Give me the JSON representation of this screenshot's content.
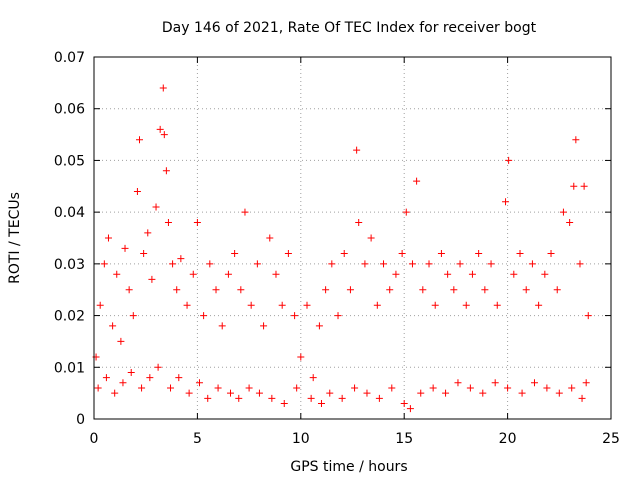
{
  "chart_data": {
    "type": "scatter",
    "title": "Day 146 of 2021, Rate Of TEC Index for receiver bogt",
    "xlabel": "GPS time / hours",
    "ylabel": "ROTI / TECUs",
    "xlim": [
      0,
      25
    ],
    "ylim": [
      0,
      0.07
    ],
    "x_ticks": [
      0,
      5,
      10,
      15,
      20,
      25
    ],
    "x_tick_labels": [
      "0",
      "5",
      "10",
      "15",
      "20",
      "25"
    ],
    "y_ticks": [
      0,
      0.01,
      0.02,
      0.03,
      0.04,
      0.05,
      0.06,
      0.07
    ],
    "y_tick_labels": [
      "0",
      "0.01",
      "0.02",
      "0.03",
      "0.04",
      "0.05",
      "0.06",
      "0.07"
    ],
    "grid": true,
    "marker": "plus",
    "color": "#ff0000",
    "series": [
      {
        "points": [
          [
            0.1,
            0.012
          ],
          [
            0.3,
            0.022
          ],
          [
            0.5,
            0.03
          ],
          [
            0.7,
            0.035
          ],
          [
            0.9,
            0.018
          ],
          [
            1.1,
            0.028
          ],
          [
            1.3,
            0.015
          ],
          [
            1.5,
            0.033
          ],
          [
            1.7,
            0.025
          ],
          [
            1.9,
            0.02
          ],
          [
            2.1,
            0.044
          ],
          [
            2.2,
            0.054
          ],
          [
            2.4,
            0.032
          ],
          [
            2.6,
            0.036
          ],
          [
            2.8,
            0.027
          ],
          [
            3.0,
            0.041
          ],
          [
            3.2,
            0.056
          ],
          [
            3.35,
            0.064
          ],
          [
            3.4,
            0.055
          ],
          [
            3.5,
            0.048
          ],
          [
            3.6,
            0.038
          ],
          [
            3.8,
            0.03
          ],
          [
            4.0,
            0.025
          ],
          [
            4.2,
            0.031
          ],
          [
            4.5,
            0.022
          ],
          [
            4.8,
            0.028
          ],
          [
            5.0,
            0.038
          ],
          [
            5.3,
            0.02
          ],
          [
            5.6,
            0.03
          ],
          [
            5.9,
            0.025
          ],
          [
            6.2,
            0.018
          ],
          [
            6.5,
            0.028
          ],
          [
            6.8,
            0.032
          ],
          [
            7.1,
            0.025
          ],
          [
            7.3,
            0.04
          ],
          [
            7.6,
            0.022
          ],
          [
            7.9,
            0.03
          ],
          [
            8.2,
            0.018
          ],
          [
            8.5,
            0.035
          ],
          [
            8.8,
            0.028
          ],
          [
            9.1,
            0.022
          ],
          [
            9.4,
            0.032
          ],
          [
            9.7,
            0.02
          ],
          [
            10.0,
            0.012
          ],
          [
            10.3,
            0.022
          ],
          [
            10.6,
            0.008
          ],
          [
            10.9,
            0.018
          ],
          [
            11.2,
            0.025
          ],
          [
            11.5,
            0.03
          ],
          [
            11.8,
            0.02
          ],
          [
            12.1,
            0.032
          ],
          [
            12.4,
            0.025
          ],
          [
            12.7,
            0.052
          ],
          [
            12.8,
            0.038
          ],
          [
            13.1,
            0.03
          ],
          [
            13.4,
            0.035
          ],
          [
            13.7,
            0.022
          ],
          [
            14.0,
            0.03
          ],
          [
            14.3,
            0.025
          ],
          [
            14.6,
            0.028
          ],
          [
            14.9,
            0.032
          ],
          [
            15.1,
            0.04
          ],
          [
            15.4,
            0.03
          ],
          [
            15.6,
            0.046
          ],
          [
            15.9,
            0.025
          ],
          [
            16.2,
            0.03
          ],
          [
            16.5,
            0.022
          ],
          [
            16.8,
            0.032
          ],
          [
            17.1,
            0.028
          ],
          [
            17.4,
            0.025
          ],
          [
            17.7,
            0.03
          ],
          [
            18.0,
            0.022
          ],
          [
            18.3,
            0.028
          ],
          [
            18.6,
            0.032
          ],
          [
            18.9,
            0.025
          ],
          [
            19.2,
            0.03
          ],
          [
            19.5,
            0.022
          ],
          [
            19.9,
            0.042
          ],
          [
            20.05,
            0.05
          ],
          [
            20.3,
            0.028
          ],
          [
            20.6,
            0.032
          ],
          [
            20.9,
            0.025
          ],
          [
            21.2,
            0.03
          ],
          [
            21.5,
            0.022
          ],
          [
            21.8,
            0.028
          ],
          [
            22.1,
            0.032
          ],
          [
            22.4,
            0.025
          ],
          [
            22.7,
            0.04
          ],
          [
            23.0,
            0.038
          ],
          [
            23.2,
            0.045
          ],
          [
            23.3,
            0.054
          ],
          [
            23.5,
            0.03
          ],
          [
            23.7,
            0.045
          ],
          [
            23.9,
            0.02
          ],
          [
            0.2,
            0.006
          ],
          [
            0.6,
            0.008
          ],
          [
            1.0,
            0.005
          ],
          [
            1.4,
            0.007
          ],
          [
            1.8,
            0.009
          ],
          [
            2.3,
            0.006
          ],
          [
            2.7,
            0.008
          ],
          [
            3.1,
            0.01
          ],
          [
            3.7,
            0.006
          ],
          [
            4.1,
            0.008
          ],
          [
            4.6,
            0.005
          ],
          [
            5.1,
            0.007
          ],
          [
            5.5,
            0.004
          ],
          [
            6.0,
            0.006
          ],
          [
            6.6,
            0.005
          ],
          [
            7.0,
            0.004
          ],
          [
            7.5,
            0.006
          ],
          [
            8.0,
            0.005
          ],
          [
            8.6,
            0.004
          ],
          [
            9.2,
            0.003
          ],
          [
            9.8,
            0.006
          ],
          [
            10.5,
            0.004
          ],
          [
            11.0,
            0.003
          ],
          [
            11.4,
            0.005
          ],
          [
            12.0,
            0.004
          ],
          [
            12.6,
            0.006
          ],
          [
            13.2,
            0.005
          ],
          [
            13.8,
            0.004
          ],
          [
            14.4,
            0.006
          ],
          [
            15.0,
            0.003
          ],
          [
            15.3,
            0.002
          ],
          [
            15.8,
            0.005
          ],
          [
            16.4,
            0.006
          ],
          [
            17.0,
            0.005
          ],
          [
            17.6,
            0.007
          ],
          [
            18.2,
            0.006
          ],
          [
            18.8,
            0.005
          ],
          [
            19.4,
            0.007
          ],
          [
            20.0,
            0.006
          ],
          [
            20.7,
            0.005
          ],
          [
            21.3,
            0.007
          ],
          [
            21.9,
            0.006
          ],
          [
            22.5,
            0.005
          ],
          [
            23.1,
            0.006
          ],
          [
            23.6,
            0.004
          ],
          [
            23.8,
            0.007
          ]
        ]
      }
    ]
  }
}
